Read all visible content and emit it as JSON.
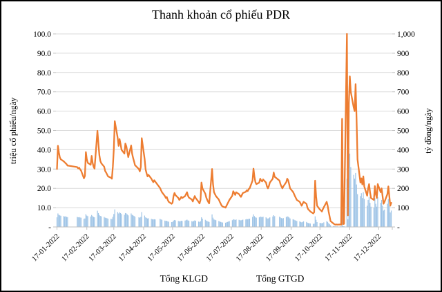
{
  "chart_data": {
    "type": "combo",
    "title": "Thanh khoản cổ phiếu PDR",
    "grid": true,
    "legend": {
      "position": "bottom",
      "entries": [
        {
          "label": "Tổng KLGD",
          "swatch": "bar",
          "color": "#5B9BD5"
        },
        {
          "label": "Tổng GTGD",
          "swatch": "line",
          "color": "#ED7D31"
        }
      ]
    },
    "left_axis": {
      "label": "triệu cổ phiếu/ngày",
      "min": 0,
      "max": 100,
      "step": 10,
      "tick_labels": [
        "-",
        "10.0",
        "20.0",
        "30.0",
        "40.0",
        "50.0",
        "60.0",
        "70.0",
        "80.0",
        "90.0",
        "100.0"
      ]
    },
    "right_axis": {
      "label": "tỷ đồng/ngày",
      "min": 0,
      "max": 1000,
      "step": 100,
      "tick_labels": [
        "-",
        "100",
        "200",
        "300",
        "400",
        "500",
        "600",
        "700",
        "800",
        "900",
        "1,000"
      ]
    },
    "x_axis": {
      "start_date": "2022-01-17",
      "end_date": "2022-12-30",
      "tick_dates": [
        "2022-01-17",
        "2022-02-17",
        "2022-03-17",
        "2022-04-17",
        "2022-05-17",
        "2022-06-17",
        "2022-07-17",
        "2022-08-17",
        "2022-09-17",
        "2022-10-17",
        "2022-11-17",
        "2022-12-17"
      ],
      "tick_labels": [
        "17-01-2022",
        "17-02-2022",
        "17-03-2022",
        "17-04-2022",
        "17-05-2022",
        "17-06-2022",
        "17-07-2022",
        "17-08-2022",
        "17-09-2022",
        "17-10-2022",
        "17-11-2022",
        "17-12-2022"
      ]
    },
    "series": [
      {
        "name": "Tổng KLGD",
        "type": "bar",
        "axis": "left",
        "color": "#9DC3E6",
        "unit": "triệu cổ phiếu/ngày"
      },
      {
        "name": "Tổng GTGD",
        "type": "line",
        "axis": "right",
        "color": "#ED7D31",
        "unit": "tỷ đồng/ngày"
      }
    ],
    "points_schema": [
      "date",
      "Tổng KLGD (triệu cổ phiếu)",
      "Tổng GTGD (tỷ đồng)"
    ],
    "points": [
      [
        "2022-01-17",
        5.0,
        300
      ],
      [
        "2022-01-18",
        7.0,
        420
      ],
      [
        "2022-01-19",
        6.3,
        385
      ],
      [
        "2022-01-20",
        6.0,
        360
      ],
      [
        "2022-01-21",
        5.8,
        350
      ],
      [
        "2022-01-24",
        5.6,
        340
      ],
      [
        "2022-01-25",
        5.4,
        335
      ],
      [
        "2022-01-26",
        5.5,
        330
      ],
      [
        "2022-01-27",
        5.2,
        325
      ],
      [
        "2022-01-28",
        5.1,
        318
      ],
      [
        "2022-02-07",
        5.2,
        310
      ],
      [
        "2022-02-08",
        5.0,
        303
      ],
      [
        "2022-02-09",
        5.1,
        307
      ],
      [
        "2022-02-10",
        4.9,
        298
      ],
      [
        "2022-02-11",
        4.8,
        292
      ],
      [
        "2022-02-14",
        4.2,
        252
      ],
      [
        "2022-02-15",
        4.4,
        264
      ],
      [
        "2022-02-16",
        6.6,
        388
      ],
      [
        "2022-02-17",
        5.9,
        350
      ],
      [
        "2022-02-18",
        5.6,
        332
      ],
      [
        "2022-02-21",
        5.4,
        322
      ],
      [
        "2022-02-22",
        6.2,
        368
      ],
      [
        "2022-02-23",
        5.6,
        333
      ],
      [
        "2022-02-24",
        5.2,
        312
      ],
      [
        "2022-02-25",
        5.0,
        302
      ],
      [
        "2022-02-28",
        8.4,
        498
      ],
      [
        "2022-03-01",
        7.2,
        432
      ],
      [
        "2022-03-02",
        6.2,
        372
      ],
      [
        "2022-03-03",
        5.7,
        342
      ],
      [
        "2022-03-04",
        5.5,
        330
      ],
      [
        "2022-03-07",
        5.2,
        312
      ],
      [
        "2022-03-08",
        4.8,
        290
      ],
      [
        "2022-03-09",
        4.7,
        282
      ],
      [
        "2022-03-10",
        4.5,
        272
      ],
      [
        "2022-03-11",
        4.3,
        262
      ],
      [
        "2022-03-14",
        4.2,
        255
      ],
      [
        "2022-03-15",
        4.1,
        250
      ],
      [
        "2022-03-16",
        5.2,
        312
      ],
      [
        "2022-03-17",
        6.7,
        402
      ],
      [
        "2022-03-18",
        9.1,
        548
      ],
      [
        "2022-03-21",
        7.7,
        462
      ],
      [
        "2022-03-22",
        7.0,
        420
      ],
      [
        "2022-03-23",
        7.6,
        455
      ],
      [
        "2022-03-24",
        7.2,
        430
      ],
      [
        "2022-03-25",
        6.7,
        400
      ],
      [
        "2022-03-28",
        6.3,
        380
      ],
      [
        "2022-03-29",
        7.2,
        432
      ],
      [
        "2022-03-30",
        7.0,
        418
      ],
      [
        "2022-03-31",
        6.5,
        390
      ],
      [
        "2022-04-01",
        6.0,
        362
      ],
      [
        "2022-04-04",
        7.0,
        422
      ],
      [
        "2022-04-05",
        6.3,
        380
      ],
      [
        "2022-04-06",
        6.0,
        358
      ],
      [
        "2022-04-07",
        5.7,
        340
      ],
      [
        "2022-04-08",
        5.3,
        320
      ],
      [
        "2022-04-12",
        5.0,
        300
      ],
      [
        "2022-04-13",
        4.8,
        288
      ],
      [
        "2022-04-14",
        5.2,
        310
      ],
      [
        "2022-04-15",
        7.7,
        460
      ],
      [
        "2022-04-18",
        5.9,
        352
      ],
      [
        "2022-04-19",
        5.0,
        298
      ],
      [
        "2022-04-20",
        4.7,
        278
      ],
      [
        "2022-04-21",
        4.4,
        262
      ],
      [
        "2022-04-22",
        4.5,
        270
      ],
      [
        "2022-04-25",
        4.2,
        250
      ],
      [
        "2022-04-26",
        4.0,
        240
      ],
      [
        "2022-04-27",
        3.9,
        232
      ],
      [
        "2022-04-28",
        4.0,
        242
      ],
      [
        "2022-04-29",
        3.9,
        235
      ],
      [
        "2022-05-04",
        4.2,
        202
      ],
      [
        "2022-05-05",
        3.9,
        190
      ],
      [
        "2022-05-06",
        3.7,
        180
      ],
      [
        "2022-05-09",
        3.3,
        160
      ],
      [
        "2022-05-10",
        3.1,
        150
      ],
      [
        "2022-05-11",
        3.2,
        155
      ],
      [
        "2022-05-12",
        2.9,
        140
      ],
      [
        "2022-05-13",
        2.7,
        130
      ],
      [
        "2022-05-16",
        2.5,
        120
      ],
      [
        "2022-05-17",
        2.6,
        126
      ],
      [
        "2022-05-18",
        3.3,
        160
      ],
      [
        "2022-05-19",
        3.6,
        176
      ],
      [
        "2022-05-20",
        3.4,
        165
      ],
      [
        "2022-05-23",
        3.1,
        150
      ],
      [
        "2022-05-24",
        2.9,
        140
      ],
      [
        "2022-05-25",
        3.0,
        146
      ],
      [
        "2022-05-26",
        3.2,
        156
      ],
      [
        "2022-05-27",
        3.1,
        150
      ],
      [
        "2022-05-30",
        3.3,
        160
      ],
      [
        "2022-05-31",
        3.5,
        170
      ],
      [
        "2022-06-01",
        3.8,
        180
      ],
      [
        "2022-06-02",
        3.4,
        162
      ],
      [
        "2022-06-03",
        3.2,
        152
      ],
      [
        "2022-06-06",
        3.0,
        142
      ],
      [
        "2022-06-07",
        2.8,
        132
      ],
      [
        "2022-06-08",
        3.1,
        146
      ],
      [
        "2022-06-09",
        3.4,
        160
      ],
      [
        "2022-06-10",
        3.2,
        150
      ],
      [
        "2022-06-13",
        2.8,
        130
      ],
      [
        "2022-06-14",
        2.6,
        122
      ],
      [
        "2022-06-15",
        3.0,
        140
      ],
      [
        "2022-06-16",
        5.0,
        230
      ],
      [
        "2022-06-17",
        4.3,
        200
      ],
      [
        "2022-06-20",
        3.7,
        172
      ],
      [
        "2022-06-21",
        3.3,
        152
      ],
      [
        "2022-06-22",
        3.0,
        140
      ],
      [
        "2022-06-23",
        2.8,
        130
      ],
      [
        "2022-06-24",
        2.6,
        122
      ],
      [
        "2022-06-27",
        6.5,
        300
      ],
      [
        "2022-06-28",
        4.8,
        222
      ],
      [
        "2022-06-29",
        3.9,
        180
      ],
      [
        "2022-06-30",
        3.7,
        170
      ],
      [
        "2022-07-01",
        3.5,
        160
      ],
      [
        "2022-07-04",
        3.1,
        142
      ],
      [
        "2022-07-05",
        2.8,
        130
      ],
      [
        "2022-07-06",
        2.6,
        120
      ],
      [
        "2022-07-07",
        2.4,
        110
      ],
      [
        "2022-07-08",
        2.3,
        106
      ],
      [
        "2022-07-11",
        2.2,
        100
      ],
      [
        "2022-07-12",
        2.4,
        110
      ],
      [
        "2022-07-13",
        2.6,
        120
      ],
      [
        "2022-07-14",
        2.8,
        130
      ],
      [
        "2022-07-15",
        3.0,
        140
      ],
      [
        "2022-07-18",
        3.5,
        162
      ],
      [
        "2022-07-19",
        4.0,
        185
      ],
      [
        "2022-07-20",
        3.8,
        176
      ],
      [
        "2022-07-21",
        3.6,
        166
      ],
      [
        "2022-07-22",
        3.9,
        180
      ],
      [
        "2022-07-25",
        3.7,
        170
      ],
      [
        "2022-07-26",
        3.5,
        162
      ],
      [
        "2022-07-27",
        3.4,
        156
      ],
      [
        "2022-07-28",
        3.6,
        166
      ],
      [
        "2022-07-29",
        3.8,
        176
      ],
      [
        "2022-08-01",
        3.9,
        182
      ],
      [
        "2022-08-02",
        4.1,
        190
      ],
      [
        "2022-08-03",
        4.0,
        186
      ],
      [
        "2022-08-04",
        4.2,
        196
      ],
      [
        "2022-08-05",
        4.3,
        200
      ],
      [
        "2022-08-08",
        5.2,
        240
      ],
      [
        "2022-08-09",
        6.5,
        302
      ],
      [
        "2022-08-10",
        5.6,
        260
      ],
      [
        "2022-08-11",
        5.0,
        232
      ],
      [
        "2022-08-12",
        4.8,
        222
      ],
      [
        "2022-08-15",
        5.0,
        230
      ],
      [
        "2022-08-16",
        5.4,
        250
      ],
      [
        "2022-08-17",
        5.2,
        240
      ],
      [
        "2022-08-18",
        5.1,
        236
      ],
      [
        "2022-08-19",
        5.3,
        246
      ],
      [
        "2022-08-22",
        5.0,
        230
      ],
      [
        "2022-08-23",
        4.5,
        210
      ],
      [
        "2022-08-24",
        4.3,
        200
      ],
      [
        "2022-08-25",
        4.6,
        212
      ],
      [
        "2022-08-26",
        5.0,
        230
      ],
      [
        "2022-08-29",
        5.4,
        250
      ],
      [
        "2022-08-30",
        6.1,
        282
      ],
      [
        "2022-08-31",
        5.6,
        260
      ],
      [
        "2022-09-05",
        5.3,
        240
      ],
      [
        "2022-09-06",
        4.9,
        222
      ],
      [
        "2022-09-07",
        4.6,
        210
      ],
      [
        "2022-09-08",
        4.4,
        200
      ],
      [
        "2022-09-09",
        4.6,
        210
      ],
      [
        "2022-09-12",
        5.1,
        232
      ],
      [
        "2022-09-13",
        5.5,
        250
      ],
      [
        "2022-09-14",
        5.3,
        242
      ],
      [
        "2022-09-15",
        4.9,
        222
      ],
      [
        "2022-09-16",
        4.4,
        200
      ],
      [
        "2022-09-19",
        4.0,
        182
      ],
      [
        "2022-09-20",
        3.8,
        172
      ],
      [
        "2022-09-21",
        3.5,
        160
      ],
      [
        "2022-09-22",
        3.3,
        150
      ],
      [
        "2022-09-23",
        3.1,
        140
      ],
      [
        "2022-09-26",
        2.9,
        130
      ],
      [
        "2022-09-27",
        2.6,
        120
      ],
      [
        "2022-09-28",
        2.4,
        110
      ],
      [
        "2022-09-29",
        2.6,
        120
      ],
      [
        "2022-09-30",
        2.9,
        130
      ],
      [
        "2022-10-03",
        2.6,
        120
      ],
      [
        "2022-10-04",
        2.2,
        100
      ],
      [
        "2022-10-05",
        2.0,
        90
      ],
      [
        "2022-10-06",
        1.9,
        86
      ],
      [
        "2022-10-07",
        1.8,
        80
      ],
      [
        "2022-10-10",
        1.6,
        70
      ],
      [
        "2022-10-11",
        1.7,
        76
      ],
      [
        "2022-10-12",
        5.5,
        240
      ],
      [
        "2022-10-13",
        3.7,
        160
      ],
      [
        "2022-10-14",
        2.5,
        110
      ],
      [
        "2022-10-17",
        2.1,
        90
      ],
      [
        "2022-10-18",
        2.0,
        86
      ],
      [
        "2022-10-19",
        1.9,
        80
      ],
      [
        "2022-10-20",
        2.1,
        92
      ],
      [
        "2022-10-21",
        2.4,
        102
      ],
      [
        "2022-10-24",
        3.0,
        130
      ],
      [
        "2022-10-25",
        2.6,
        110
      ],
      [
        "2022-10-26",
        2.0,
        80
      ],
      [
        "2022-10-27",
        1.4,
        55
      ],
      [
        "2022-10-28",
        0.9,
        30
      ],
      [
        "2022-10-31",
        0.5,
        18
      ],
      [
        "2022-11-01",
        0.35,
        14
      ],
      [
        "2022-11-02",
        0.3,
        12
      ],
      [
        "2022-11-03",
        0.3,
        13
      ],
      [
        "2022-11-04",
        0.3,
        12
      ],
      [
        "2022-11-07",
        0.3,
        13
      ],
      [
        "2022-11-08",
        0.3,
        12
      ],
      [
        "2022-11-09",
        8.0,
        560
      ],
      [
        "2022-11-10",
        0.4,
        15
      ],
      [
        "2022-11-11",
        0.4,
        16
      ],
      [
        "2022-11-14",
        25.0,
        1000
      ],
      [
        "2022-11-15",
        4.0,
        60
      ],
      [
        "2022-11-16",
        41.0,
        640
      ],
      [
        "2022-11-17",
        38.0,
        780
      ],
      [
        "2022-11-18",
        31.0,
        700
      ],
      [
        "2022-11-21",
        27.0,
        620
      ],
      [
        "2022-11-22",
        25.0,
        600
      ],
      [
        "2022-11-23",
        28.0,
        740
      ],
      [
        "2022-11-24",
        22.0,
        560
      ],
      [
        "2022-11-25",
        17.0,
        350
      ],
      [
        "2022-11-28",
        16.0,
        230
      ],
      [
        "2022-11-29",
        17.5,
        252
      ],
      [
        "2022-11-30",
        15.0,
        220
      ],
      [
        "2022-12-01",
        18.0,
        262
      ],
      [
        "2022-12-02",
        14.5,
        210
      ],
      [
        "2022-12-05",
        11.0,
        162
      ],
      [
        "2022-12-06",
        14.0,
        200
      ],
      [
        "2022-12-07",
        15.5,
        222
      ],
      [
        "2022-12-08",
        12.5,
        180
      ],
      [
        "2022-12-09",
        10.5,
        150
      ],
      [
        "2022-12-12",
        10.0,
        140
      ],
      [
        "2022-12-13",
        15.0,
        212
      ],
      [
        "2022-12-14",
        12.0,
        170
      ],
      [
        "2022-12-15",
        10.5,
        150
      ],
      [
        "2022-12-16",
        15.5,
        222
      ],
      [
        "2022-12-19",
        12.5,
        180
      ],
      [
        "2022-12-20",
        14.0,
        200
      ],
      [
        "2022-12-21",
        11.0,
        160
      ],
      [
        "2022-12-22",
        8.5,
        120
      ],
      [
        "2022-12-23",
        9.0,
        130
      ],
      [
        "2022-12-26",
        12.0,
        170
      ],
      [
        "2022-12-27",
        14.5,
        210
      ],
      [
        "2022-12-28",
        11.0,
        160
      ],
      [
        "2022-12-29",
        7.5,
        110
      ],
      [
        "2022-12-30",
        8.5,
        125
      ]
    ],
    "colors": {
      "line": "#ED7D31",
      "bar": "#9DC3E6",
      "gridline": "#D9D9D9",
      "axis": "#BFBFBF",
      "text": "#000000",
      "border": "#000000",
      "background": "#FFFFFF"
    }
  }
}
